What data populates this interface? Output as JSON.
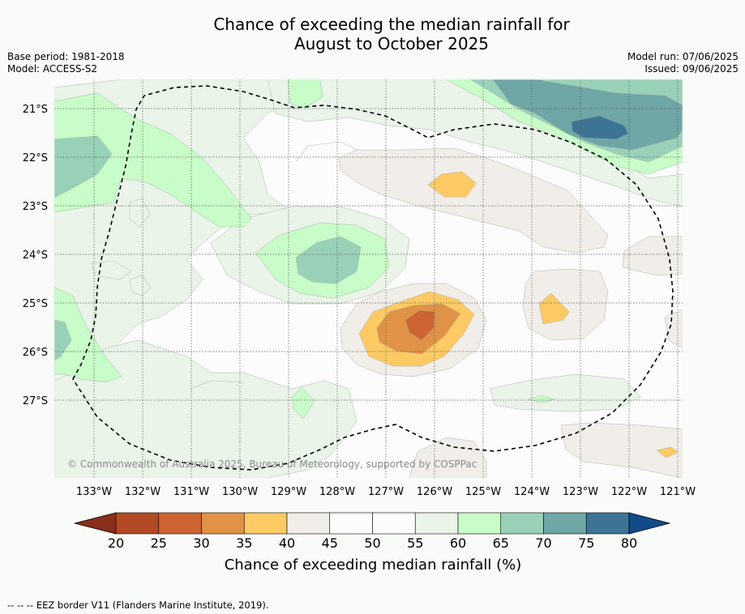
{
  "title_line1": "Chance of exceeding the median rainfall for",
  "title_line2": "August to October 2025",
  "base_period": "Base period: 1981-2018",
  "model": "Model: ACCESS-S2",
  "model_run": "Model run: 07/06/2025",
  "issued": "Issued: 09/06/2025",
  "copyright": "© Commonwealth of Australia 2025, Bureau of Meteorology, supported by COSPPac",
  "lat_labels": [
    "21°S",
    "22°S",
    "23°S",
    "24°S",
    "25°S",
    "26°S",
    "27°S"
  ],
  "lon_labels": [
    "133°W",
    "132°W",
    "131°W",
    "130°W",
    "129°W",
    "128°W",
    "127°W",
    "126°W",
    "125°W",
    "124°W",
    "123°W",
    "122°W",
    "121°W"
  ],
  "colorbar": {
    "title": "Chance of exceeding median rainfall (%)",
    "ticks": [
      "20",
      "25",
      "30",
      "35",
      "40",
      "45",
      "50",
      "55",
      "60",
      "65",
      "70",
      "75",
      "80"
    ],
    "colors": {
      "below20": "#8a2f1c",
      "c20_25": "#b14a25",
      "c25_30": "#cd6432",
      "c30_35": "#e09346",
      "c35_40": "#fdca64",
      "c40_45": "#f1ede8",
      "c45_50": "#fbfcfb",
      "c50_55": "#fbfcfb",
      "c55_60": "#eaf4e9",
      "c60_65": "#c8fcc8",
      "c65_70": "#99d1b8",
      "c70_75": "#6fa6a6",
      "c75_80": "#3d7495",
      "above80": "#134b8a"
    }
  },
  "footnote": "-- -- -- EEZ border V11 (Flanders Marine Institute, 2019)."
}
